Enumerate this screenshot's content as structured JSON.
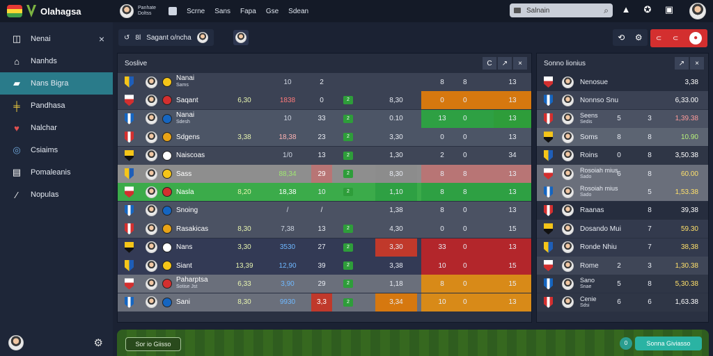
{
  "app": {
    "name": "Olahagsa"
  },
  "topbar": {
    "user_line1": "Panhate",
    "user_line2": "Doltss",
    "nav": [
      "Scrne",
      "Sans",
      "Fapa",
      "Gse",
      "Sdean"
    ],
    "search_placeholder": "Salnain",
    "icons": [
      "bell-icon",
      "soccer-ball-icon",
      "square-icon",
      "user-avatar"
    ]
  },
  "sidebar": {
    "items": [
      {
        "label": "Nenai",
        "icon": "dashboard-icon"
      },
      {
        "label": "Nanhds",
        "icon": "home-icon"
      },
      {
        "label": "Nans Bigra",
        "icon": "team-icon",
        "active": true
      },
      {
        "label": "Pandhasa",
        "icon": "chart-icon"
      },
      {
        "label": "Nalchar",
        "icon": "shield-icon"
      },
      {
        "label": "Csiaims",
        "icon": "globe-icon"
      },
      {
        "label": "Pomaleanis",
        "icon": "folder-icon"
      },
      {
        "label": "Nopulas",
        "icon": "link-icon"
      }
    ],
    "close_icon": "×",
    "gear_icon": "⚙"
  },
  "header": {
    "breadcrumb_icon": "↺",
    "breadcrumb_sep": "8l",
    "breadcrumb_label": "Sagant o/ncha",
    "tools": [
      "⟲",
      "⚙"
    ],
    "red_tools": [
      "⊂",
      "⊂"
    ]
  },
  "main_panel": {
    "title": "Soslive",
    "buttons": [
      "C",
      "↗",
      "×"
    ],
    "rows": [
      {
        "name": "Nanai",
        "sub": "Sams",
        "v1": "",
        "v2": "10",
        "v3": "2",
        "v4": "",
        "v5": "8",
        "v6": "8",
        "v7": "13",
        "hl": "none",
        "sq": "",
        "v2c": "#cfd6e2"
      },
      {
        "name": "Saqant",
        "sub": "",
        "v1": "6,30",
        "v2": "1838",
        "v3": "0",
        "v4": "8,30",
        "v5": "0",
        "v6": "0",
        "v7": "13",
        "hl": "orange",
        "sq": "2",
        "v2c": "#ff7a7a"
      },
      {
        "name": "Nanai",
        "sub": "Sdesh",
        "v1": "",
        "v2": "10",
        "v3": "33",
        "v4": "0.10",
        "v5": "13",
        "v6": "0",
        "v7": "13",
        "hl": "green",
        "sq": "2",
        "v2c": "#cfd6e2"
      },
      {
        "name": "Sdgens",
        "sub": "",
        "v1": "3,38",
        "v2": "18,38",
        "v3": "23",
        "v4": "3,30",
        "v5": "0",
        "v6": "0",
        "v7": "13",
        "hl": "none",
        "sq": "2",
        "v2c": "#ffb3b3"
      },
      {
        "name": "Naiscoas",
        "sub": "",
        "v1": "",
        "v2": "1/0",
        "v3": "13",
        "v4": "1,30",
        "v5": "2",
        "v6": "0",
        "v7": "34",
        "hl": "none",
        "sq": "2",
        "v2c": "#cfd6e2"
      },
      {
        "name": "Sass",
        "sub": "",
        "v1": "",
        "v2": "88,34",
        "v3": "29",
        "v4": "8,30",
        "v5": "8",
        "v6": "8",
        "v7": "13",
        "hl": "pink",
        "sq": "2",
        "v2c": "#9fe870"
      },
      {
        "name": "Nasla",
        "sub": "",
        "v1": "8,20",
        "v2": "18,38",
        "v3": "10",
        "v4": "1,10",
        "v5": "8",
        "v6": "8",
        "v7": "13",
        "hl": "bright",
        "sq": "2",
        "v2c": "#ffffff"
      },
      {
        "name": "Snoing",
        "sub": "",
        "v1": "",
        "v2": "/",
        "v3": "/",
        "v4": "1,38",
        "v5": "8",
        "v6": "0",
        "v7": "13",
        "hl": "none",
        "sq": "",
        "v2c": "#cfd6e2"
      },
      {
        "name": "Rasakicas",
        "sub": "",
        "v1": "8,30",
        "v2": "7,38",
        "v3": "13",
        "v4": "4,30",
        "v5": "0",
        "v6": "0",
        "v7": "15",
        "hl": "redsq",
        "sq": "2",
        "v2c": "#cfd6e2"
      },
      {
        "name": "Nans",
        "sub": "",
        "v1": "3,30",
        "v2": "3530",
        "v3": "27",
        "v4": "3,30",
        "v5": "33",
        "v6": "0",
        "v7": "13",
        "hl": "red",
        "sq": "2",
        "v2c": "#6fb8ff"
      },
      {
        "name": "Siant",
        "sub": "",
        "v1": "13,39",
        "v2": "12,90",
        "v3": "39",
        "v4": "3,38",
        "v5": "10",
        "v6": "0",
        "v7": "15",
        "hl": "red2",
        "sq": "2",
        "v2c": "#6fb8ff"
      },
      {
        "name": "Paharptsa",
        "sub": "Sotise Jst",
        "v1": "6,33",
        "v2": "3,90",
        "v3": "29",
        "v4": "1,18",
        "v5": "8",
        "v6": "0",
        "v7": "15",
        "hl": "orange2",
        "sq": "2",
        "v2c": "#6fb8ff"
      },
      {
        "name": "Sani",
        "sub": "",
        "v1": "8,30",
        "v2": "9930",
        "v3": "3,3",
        "v4": "3,34",
        "v5": "10",
        "v6": "0",
        "v7": "13",
        "hl": "orange3",
        "sq": "2",
        "v2c": "#6fb8ff"
      }
    ]
  },
  "side_panel": {
    "title": "Sonno lionius",
    "buttons": [
      "↗",
      "×"
    ],
    "rows": [
      {
        "name": "Nenosue",
        "sub": "",
        "v1": "",
        "v2": "",
        "v3": "3,38",
        "v3c": "#ffffff"
      },
      {
        "name": "Nonnso Snu",
        "sub": "",
        "v1": "",
        "v2": "",
        "v3": "6,33.00",
        "v3c": "#ffffff"
      },
      {
        "name": "Seens",
        "sub": "Sedis",
        "v1": "5",
        "v2": "3",
        "v3": "1,39.38",
        "v3c": "#ff9b9b"
      },
      {
        "name": "Soms",
        "sub": "",
        "v1": "8",
        "v2": "8",
        "v3": "10.90",
        "v3c": "#b6f07a"
      },
      {
        "name": "Roins",
        "sub": "",
        "v1": "0",
        "v2": "8",
        "v3": "3,50.38",
        "v3c": "#ffffff"
      },
      {
        "name": "Rosoiah mius",
        "sub": "Sado",
        "v1": "6",
        "v2": "8",
        "v3": "60.00",
        "v3c": "#ffe06a"
      },
      {
        "name": "Rosoiah mius",
        "sub": "Sado",
        "v1": "",
        "v2": "5",
        "v3": "1,53.38",
        "v3c": "#ffe06a"
      },
      {
        "name": "Raanas",
        "sub": "",
        "v1": "",
        "v2": "8",
        "v3": "39,38",
        "v3c": "#ffffff"
      },
      {
        "name": "Dosando Mui",
        "sub": "",
        "v1": "",
        "v2": "7",
        "v3": "59.30",
        "v3c": "#ffe06a"
      },
      {
        "name": "Ronde Nhiu",
        "sub": "",
        "v1": "",
        "v2": "7",
        "v3": "38,38",
        "v3c": "#ffe06a"
      },
      {
        "name": "Rome",
        "sub": "",
        "v1": "2",
        "v2": "3",
        "v3": "1,30.38",
        "v3c": "#ffe06a"
      },
      {
        "name": "Sano",
        "sub": "Snae",
        "v1": "5",
        "v2": "8",
        "v3": "5,30.38",
        "v3c": "#ffe06a"
      },
      {
        "name": "Cenie",
        "sub": "Sdsi",
        "v1": "6",
        "v2": "6",
        "v3": "1,63.38",
        "v3c": "#ffffff"
      }
    ]
  },
  "bottombar": {
    "left_button": "Sor io Giisso",
    "circle": "0",
    "right_button": "Sonna Giviasso"
  },
  "colors": {
    "accent": "#2a7b8a",
    "red": "#d32f2f",
    "green": "#2e9d3a",
    "orange": "#d6780f"
  }
}
